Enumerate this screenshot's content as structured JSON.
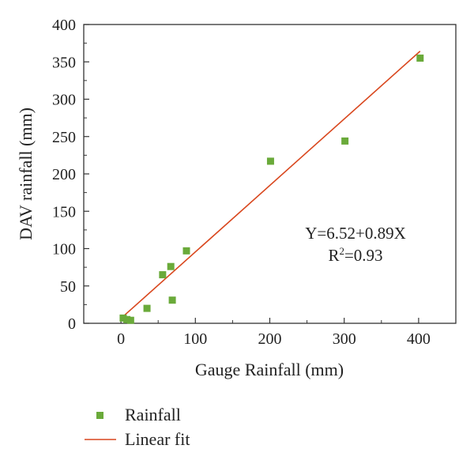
{
  "colors": {
    "marker": "#6aaa3a",
    "fit_line": "#d9471e",
    "axis": "#333333"
  },
  "chart_data": {
    "type": "scatter",
    "xlabel": "Gauge Rainfall (mm)",
    "ylabel": "DAV rainfall (mm)",
    "xlim": [
      -50,
      450
    ],
    "ylim": [
      0,
      400
    ],
    "xticks": [
      0,
      100,
      200,
      300,
      400
    ],
    "yticks": [
      0,
      50,
      100,
      150,
      200,
      250,
      300,
      350,
      400
    ],
    "grid": false,
    "legend_position": "bottom-left",
    "series": [
      {
        "name": "Rainfall",
        "kind": "scatter",
        "marker": "square",
        "points": [
          {
            "x": 3,
            "y": 7
          },
          {
            "x": 8,
            "y": 5
          },
          {
            "x": 13,
            "y": 4
          },
          {
            "x": 35,
            "y": 20
          },
          {
            "x": 56,
            "y": 65
          },
          {
            "x": 67,
            "y": 76
          },
          {
            "x": 69,
            "y": 31
          },
          {
            "x": 88,
            "y": 97
          },
          {
            "x": 201,
            "y": 217
          },
          {
            "x": 301,
            "y": 244
          },
          {
            "x": 402,
            "y": 355
          }
        ]
      },
      {
        "name": "Linear fit",
        "kind": "line",
        "intercept": 6.52,
        "slope": 0.89,
        "x_range": [
          0,
          402
        ]
      }
    ],
    "annotations": {
      "equation": "Y=6.52+0.89X",
      "r2_prefix": "R",
      "r2_sup": "2",
      "r2_suffix": "=0.93"
    }
  }
}
